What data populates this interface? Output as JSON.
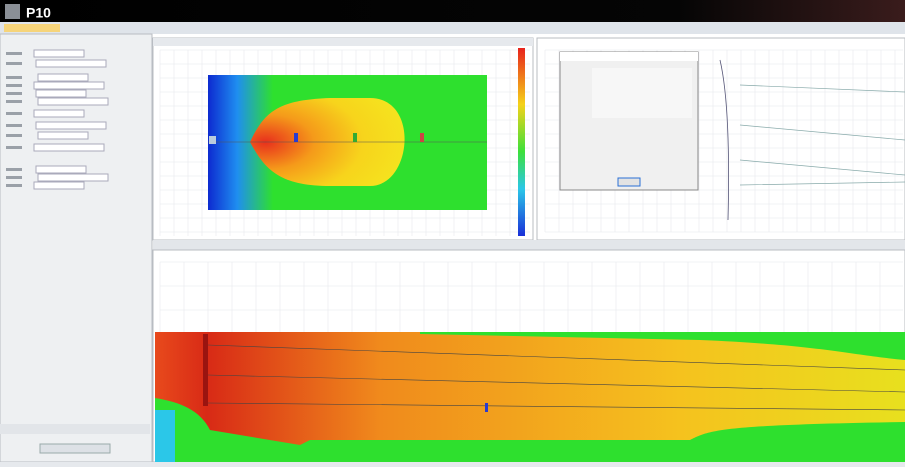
{
  "app": {
    "title": "P10"
  }
}
